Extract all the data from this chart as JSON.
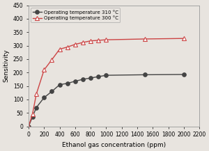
{
  "series": [
    {
      "label": "Operating temperature 310 °C",
      "color": "#444444",
      "marker": "o",
      "markerfacecolor": "#444444",
      "markeredgecolor": "#444444",
      "markersize": 4,
      "linewidth": 1.0,
      "x": [
        0,
        50,
        100,
        200,
        300,
        400,
        500,
        600,
        700,
        800,
        900,
        1000,
        1500,
        2000
      ],
      "y": [
        0,
        35,
        70,
        107,
        130,
        155,
        160,
        168,
        175,
        180,
        185,
        190,
        192,
        193
      ]
    },
    {
      "label": "Operating temperature 300 °C",
      "color": "#cc4444",
      "marker": "^",
      "markerfacecolor": "white",
      "markeredgecolor": "#cc4444",
      "markersize": 5,
      "linewidth": 1.0,
      "x": [
        0,
        50,
        100,
        200,
        300,
        400,
        500,
        600,
        700,
        800,
        900,
        1000,
        1500,
        2000
      ],
      "y": [
        0,
        45,
        120,
        210,
        248,
        287,
        295,
        305,
        312,
        318,
        320,
        322,
        325,
        327
      ]
    }
  ],
  "xlabel": "Ethanol gas concentration (ppm)",
  "ylabel": "Sensitivity",
  "xlim": [
    0,
    2200
  ],
  "ylim": [
    0,
    450
  ],
  "xticks": [
    0,
    200,
    400,
    600,
    800,
    1000,
    1200,
    1400,
    1600,
    1800,
    2000,
    2200
  ],
  "yticks": [
    0,
    50,
    100,
    150,
    200,
    250,
    300,
    350,
    400,
    450
  ],
  "legend_loc": "upper left",
  "background_color": "#e8e4df",
  "tick_fontsize": 5.5,
  "label_fontsize": 6.5,
  "legend_fontsize": 5.0
}
